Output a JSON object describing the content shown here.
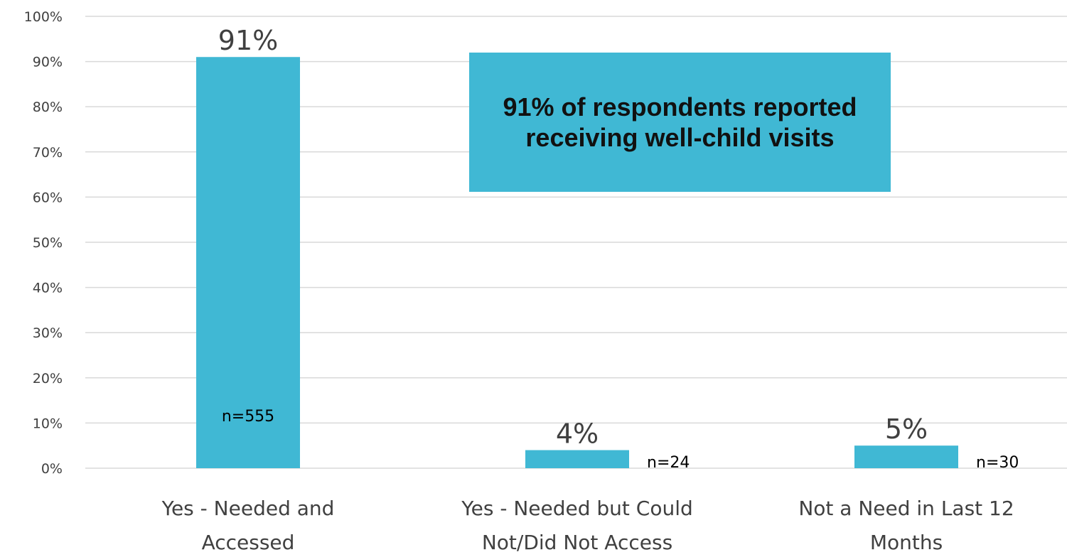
{
  "colors": {
    "bar": "#40B8D4",
    "callout_bg": "#40B8D4",
    "grid": "#D9D9D9",
    "text": "#404040"
  },
  "callout": {
    "text": "91% of respondents reported receiving well-child visits"
  },
  "chart_data": {
    "type": "bar",
    "title": "",
    "xlabel": "",
    "ylabel": "",
    "ylim": [
      0,
      100
    ],
    "y_ticks": [
      "0%",
      "10%",
      "20%",
      "30%",
      "40%",
      "50%",
      "60%",
      "70%",
      "80%",
      "90%",
      "100%"
    ],
    "grid": true,
    "categories": [
      [
        "Yes - Needed and",
        "Accessed"
      ],
      [
        "Yes - Needed but Could",
        "Not/Did Not Access"
      ],
      [
        "Not a Need in Last 12",
        "Months"
      ]
    ],
    "values": [
      91,
      4,
      5
    ],
    "value_labels": [
      "91%",
      "4%",
      "5%"
    ],
    "n_labels": [
      "n=555",
      "n=24",
      "n=30"
    ]
  }
}
